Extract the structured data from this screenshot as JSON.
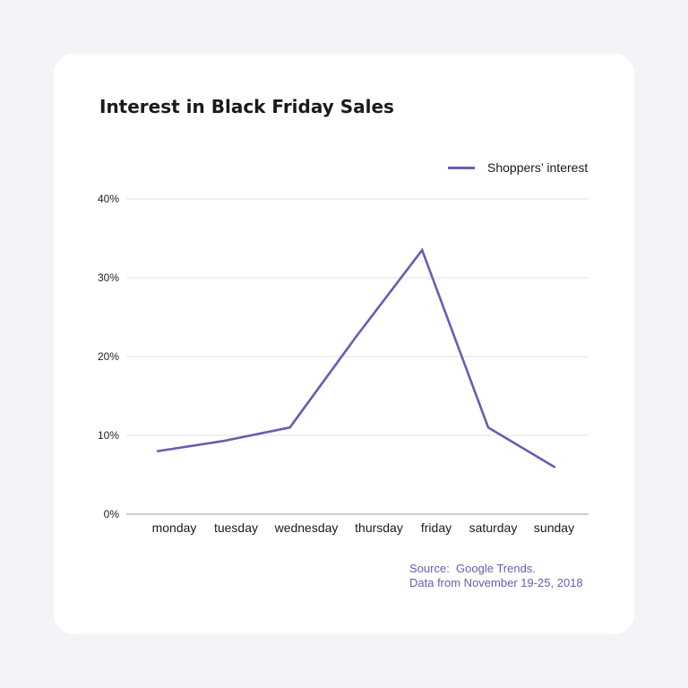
{
  "chart_data": {
    "type": "line",
    "title": "Interest in Black Friday Sales",
    "categories": [
      "monday",
      "tuesday",
      "wednesday",
      "thursday",
      "friday",
      "saturday",
      "sunday"
    ],
    "series": [
      {
        "name": "Shoppers’ interest",
        "values": [
          8,
          9.3,
          11,
          22.5,
          33.5,
          11,
          6
        ]
      }
    ],
    "yticks": [
      "0%",
      "10%",
      "20%",
      "30%",
      "40%"
    ],
    "ylim": [
      0,
      40
    ],
    "grid": true,
    "legend_position": "top-right",
    "line_color": "#6a5cb2",
    "source_line1": "Source:  Google Trends.",
    "source_line2": "Data from November 19-25, 2018"
  }
}
